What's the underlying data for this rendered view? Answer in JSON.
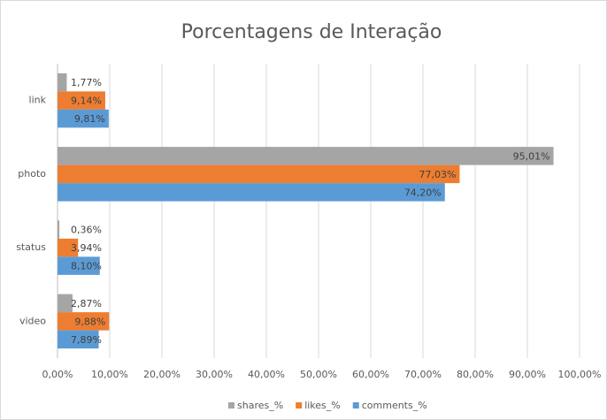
{
  "chart_data": {
    "type": "bar",
    "orientation": "horizontal",
    "title": "Porcentagens de Interação",
    "categories": [
      "link",
      "photo",
      "status",
      "video"
    ],
    "series": [
      {
        "name": "shares_%",
        "color": "#a5a5a5",
        "values": [
          1.77,
          95.01,
          0.36,
          2.87
        ],
        "value_labels": [
          "1,77%",
          "95,01%",
          "0,36%",
          "2,87%"
        ]
      },
      {
        "name": "likes_%",
        "color": "#ed7d31",
        "values": [
          9.14,
          77.03,
          3.94,
          9.88
        ],
        "value_labels": [
          "9,14%",
          "77,03%",
          "3,94%",
          "9,88%"
        ]
      },
      {
        "name": "comments_%",
        "color": "#5b9bd5",
        "values": [
          9.81,
          74.2,
          8.1,
          7.89
        ],
        "value_labels": [
          "9,81%",
          "74,20%",
          "8,10%",
          "7,89%"
        ]
      }
    ],
    "xlim": [
      0,
      100
    ],
    "xticks": [
      {
        "value": 0,
        "label": "0,00%"
      },
      {
        "value": 10,
        "label": "10,00%"
      },
      {
        "value": 20,
        "label": "20,00%"
      },
      {
        "value": 30,
        "label": "30,00%"
      },
      {
        "value": 40,
        "label": "40,00%"
      },
      {
        "value": 50,
        "label": "50,00%"
      },
      {
        "value": 60,
        "label": "60,00%"
      },
      {
        "value": 70,
        "label": "70,00%"
      },
      {
        "value": 80,
        "label": "80,00%"
      },
      {
        "value": 90,
        "label": "90,00%"
      },
      {
        "value": 100,
        "label": "100,00%"
      }
    ],
    "grid": true,
    "legend": "bottom"
  }
}
